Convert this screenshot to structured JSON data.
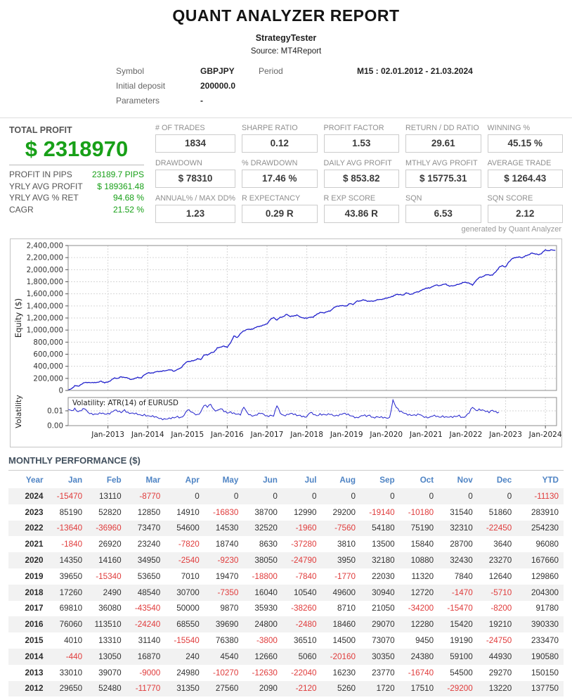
{
  "header": {
    "title": "QUANT ANALYZER REPORT",
    "subtitle": "StrategyTester",
    "source": "Source: MT4Report"
  },
  "info": {
    "symbol_label": "Symbol",
    "symbol": "GBPJPY",
    "period_label": "Period",
    "period": "M15 : 02.01.2012 - 21.03.2024",
    "initial_deposit_label": "Initial deposit",
    "initial_deposit": "200000.0",
    "parameters_label": "Parameters",
    "parameters": "-"
  },
  "stats": {
    "total_label": "TOTAL PROFIT",
    "total_value": "$ 2318970",
    "total_sub": [
      {
        "label": "PROFIT IN PIPS",
        "value": "23189.7 PIPS"
      },
      {
        "label": "YRLY AVG PROFIT",
        "value": "$ 189361.48"
      },
      {
        "label": "YRLY AVG % RET",
        "value": "94.68 %"
      },
      {
        "label": "CAGR",
        "value": "21.52 %"
      }
    ],
    "boxes": [
      {
        "label": "# OF TRADES",
        "value": "1834"
      },
      {
        "label": "SHARPE RATIO",
        "value": "0.12"
      },
      {
        "label": "PROFIT FACTOR",
        "value": "1.53"
      },
      {
        "label": "RETURN / DD RATIO",
        "value": "29.61"
      },
      {
        "label": "WINNING %",
        "value": "45.15 %"
      },
      {
        "label": "DRAWDOWN",
        "value": "$ 78310"
      },
      {
        "label": "% DRAWDOWN",
        "value": "17.46 %"
      },
      {
        "label": "DAILY AVG PROFIT",
        "value": "$ 853.82"
      },
      {
        "label": "MTHLY AVG PROFIT",
        "value": "$ 15775.31"
      },
      {
        "label": "AVERAGE TRADE",
        "value": "$ 1264.43"
      },
      {
        "label": "ANNUAL% / MAX DD%",
        "value": "1.23"
      },
      {
        "label": "R EXPECTANCY",
        "value": "0.29 R"
      },
      {
        "label": "R EXP SCORE",
        "value": "43.86 R"
      },
      {
        "label": "SQN",
        "value": "6.53"
      },
      {
        "label": "SQN SCORE",
        "value": "2.12"
      }
    ],
    "generated_by": "generated by Quant Analyzer"
  },
  "chart_data": {
    "type": "line",
    "equity": {
      "ylabel": "Equity ($)",
      "ymin": 0,
      "ymax": 2400000,
      "ytick_step": 200000,
      "x_start": 2012.0,
      "x_end": 2024.25,
      "start_value": 0,
      "end_value": 2318970,
      "derived_from": "cumulative sum of monthly performance values",
      "line_color": "#2121cc"
    },
    "xticks": [
      "Jan-2013",
      "Jan-2014",
      "Jan-2015",
      "Jan-2016",
      "Jan-2017",
      "Jan-2018",
      "Jan-2019",
      "Jan-2020",
      "Jan-2021",
      "Jan-2022",
      "Jan-2023",
      "Jan-2024"
    ],
    "volatility": {
      "ylabel": "Volatility",
      "legend": "Volatility: ATR(14) of EURUSD",
      "yticks": [
        0.0,
        0.01
      ],
      "ymax_scale": 0.019,
      "x_start": 2012.0,
      "step_months": 1,
      "line_color": "#2121cc",
      "values": [
        0.011,
        0.0102,
        0.0118,
        0.0094,
        0.01,
        0.0113,
        0.009,
        0.0084,
        0.0079,
        0.0076,
        0.0081,
        0.0078,
        0.0083,
        0.0091,
        0.0104,
        0.0094,
        0.0087,
        0.0108,
        0.0091,
        0.0084,
        0.0079,
        0.0074,
        0.0071,
        0.0077,
        0.0067,
        0.0061,
        0.0057,
        0.0054,
        0.005,
        0.0047,
        0.0044,
        0.0046,
        0.0052,
        0.0064,
        0.0057,
        0.0071,
        0.0104,
        0.0093,
        0.0083,
        0.0076,
        0.0092,
        0.0136,
        0.0124,
        0.0144,
        0.0109,
        0.0104,
        0.0114,
        0.0094,
        0.0084,
        0.0094,
        0.0087,
        0.0077,
        0.0071,
        0.0124,
        0.0089,
        0.0074,
        0.0067,
        0.0071,
        0.0081,
        0.0077,
        0.0067,
        0.0071,
        0.0064,
        0.0133,
        0.0084,
        0.0071,
        0.0077,
        0.0081,
        0.0074,
        0.0067,
        0.0071,
        0.0064,
        0.0061,
        0.0087,
        0.0074,
        0.0067,
        0.0081,
        0.0077,
        0.0071,
        0.0074,
        0.0067,
        0.0071,
        0.0077,
        0.0081,
        0.0074,
        0.0067,
        0.0064,
        0.0057,
        0.0061,
        0.0067,
        0.0061,
        0.0071,
        0.0057,
        0.0061,
        0.0054,
        0.0051,
        0.0051,
        0.0057,
        0.0174,
        0.0123,
        0.0094,
        0.0087,
        0.0081,
        0.0077,
        0.0071,
        0.0067,
        0.0074,
        0.0064,
        0.0061,
        0.0057,
        0.0064,
        0.0061,
        0.0057,
        0.0067,
        0.0061,
        0.0057,
        0.0054,
        0.0061,
        0.0071,
        0.0057,
        0.0064,
        0.0084,
        0.0123,
        0.0104,
        0.0113,
        0.0107,
        0.0094,
        0.0087,
        0.0104,
        0.0097,
        0.0091
      ]
    }
  },
  "monthly": {
    "title": "MONTHLY PERFORMANCE ($)",
    "columns": [
      "Year",
      "Jan",
      "Feb",
      "Mar",
      "Apr",
      "May",
      "Jun",
      "Jul",
      "Aug",
      "Sep",
      "Oct",
      "Nov",
      "Dec",
      "YTD"
    ],
    "rows": [
      {
        "year": "2024",
        "values": [
          -15470,
          13110,
          -8770,
          0,
          0,
          0,
          0,
          0,
          0,
          0,
          0,
          0
        ],
        "ytd": -11130
      },
      {
        "year": "2023",
        "values": [
          85190,
          52820,
          12850,
          14910,
          -16830,
          38700,
          12990,
          29200,
          -19140,
          -10180,
          31540,
          51860
        ],
        "ytd": 283910
      },
      {
        "year": "2022",
        "values": [
          -13640,
          -36960,
          73470,
          54600,
          14530,
          32520,
          -1960,
          -7560,
          54180,
          75190,
          32310,
          -22450
        ],
        "ytd": 254230
      },
      {
        "year": "2021",
        "values": [
          -1840,
          26920,
          23240,
          -7820,
          18740,
          8630,
          -37280,
          3810,
          13500,
          15840,
          28700,
          3640
        ],
        "ytd": 96080
      },
      {
        "year": "2020",
        "values": [
          14350,
          14160,
          34950,
          -2540,
          -9230,
          38050,
          -24790,
          3950,
          32180,
          10880,
          32430,
          23270
        ],
        "ytd": 167660
      },
      {
        "year": "2019",
        "values": [
          39650,
          -15340,
          53650,
          7010,
          19470,
          -18800,
          -7840,
          -1770,
          22030,
          11320,
          7840,
          12640
        ],
        "ytd": 129860
      },
      {
        "year": "2018",
        "values": [
          17260,
          2490,
          48540,
          30700,
          -7350,
          16040,
          10540,
          49600,
          30940,
          12720,
          -1470,
          -5710
        ],
        "ytd": 204300
      },
      {
        "year": "2017",
        "values": [
          69810,
          36080,
          -43540,
          50000,
          9870,
          35930,
          -38260,
          8710,
          21050,
          -34200,
          -15470,
          -8200
        ],
        "ytd": 91780
      },
      {
        "year": "2016",
        "values": [
          76060,
          113510,
          -24240,
          68550,
          39690,
          24800,
          -2480,
          18460,
          29070,
          12280,
          15420,
          19210
        ],
        "ytd": 390330
      },
      {
        "year": "2015",
        "values": [
          4010,
          13310,
          31140,
          -15540,
          76380,
          -3800,
          36510,
          14500,
          73070,
          9450,
          19190,
          -24750
        ],
        "ytd": 233470
      },
      {
        "year": "2014",
        "values": [
          -440,
          13050,
          16870,
          240,
          4540,
          12660,
          5060,
          -20160,
          30350,
          24380,
          59100,
          44930
        ],
        "ytd": 190580
      },
      {
        "year": "2013",
        "values": [
          33010,
          39070,
          -9000,
          24980,
          -10270,
          -12630,
          -22040,
          16230,
          23770,
          -16740,
          54500,
          29270
        ],
        "ytd": 150150
      },
      {
        "year": "2012",
        "values": [
          29650,
          52480,
          -11770,
          31350,
          27560,
          2090,
          -2120,
          5260,
          1720,
          17510,
          -29200,
          13220
        ],
        "ytd": 137750
      }
    ]
  },
  "colors": {
    "profit_green": "#18a018",
    "negative_red": "#e03c3c",
    "table_header_blue": "#4f84c4",
    "equity_line_blue": "#2121cc"
  }
}
